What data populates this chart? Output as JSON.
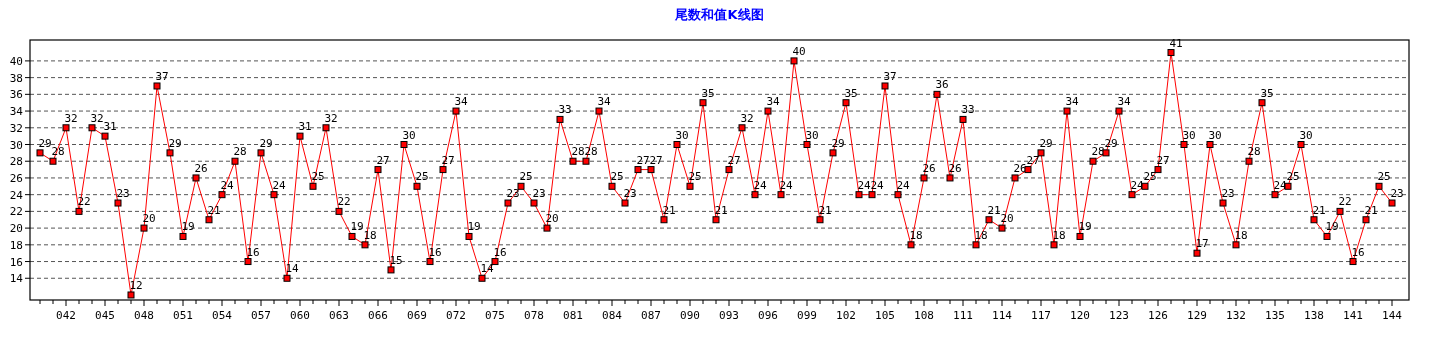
{
  "chart_data": {
    "type": "line",
    "title": "尾数和值K线图",
    "categories": [
      null,
      null,
      "042",
      null,
      null,
      "045",
      null,
      null,
      "048",
      null,
      null,
      "051",
      null,
      null,
      "054",
      null,
      null,
      "057",
      null,
      null,
      "060",
      null,
      null,
      "063",
      null,
      null,
      "066",
      null,
      null,
      "069",
      null,
      null,
      "072",
      null,
      null,
      "075",
      null,
      null,
      "078",
      null,
      null,
      "081",
      null,
      null,
      "084",
      null,
      null,
      "087",
      null,
      null,
      "090",
      null,
      null,
      "093",
      null,
      null,
      "096",
      null,
      null,
      "099",
      null,
      null,
      "102",
      null,
      null,
      "105",
      null,
      null,
      "108",
      null,
      null,
      "111",
      null,
      null,
      "114",
      null,
      null,
      "117",
      null,
      null,
      "120",
      null,
      null,
      "123",
      null,
      null,
      "126",
      null,
      null,
      "129",
      null,
      null,
      "132",
      null,
      null,
      "135",
      null,
      null,
      "138",
      null,
      null,
      "141",
      null,
      null,
      "144"
    ],
    "series": [
      {
        "color": "#ff0000",
        "values": [
          29,
          28,
          32,
          22,
          32,
          31,
          23,
          12,
          20,
          37,
          29,
          19,
          26,
          21,
          24,
          28,
          16,
          29,
          24,
          14,
          31,
          25,
          32,
          22,
          19,
          18,
          27,
          15,
          30,
          25,
          16,
          27,
          34,
          19,
          14,
          16,
          23,
          25,
          23,
          20,
          33,
          28,
          28,
          34,
          25,
          23,
          27,
          27,
          21,
          30,
          25,
          35,
          21,
          27,
          32,
          24,
          34,
          24,
          40,
          30,
          21,
          29,
          35,
          24,
          24,
          37,
          24,
          18,
          26,
          36,
          26,
          33,
          18,
          21,
          20,
          26,
          27,
          29,
          18,
          34,
          19,
          28,
          29,
          34,
          24,
          25,
          27,
          41,
          30,
          17,
          30,
          23,
          18,
          28,
          35,
          24,
          25,
          30,
          21,
          19,
          22,
          16,
          21,
          25,
          23
        ]
      }
    ],
    "ylim": [
      11.4,
      42.5
    ],
    "yticks": [
      14,
      16,
      18,
      20,
      22,
      24,
      26,
      28,
      30,
      32,
      34,
      36,
      38,
      40
    ],
    "grid": "y",
    "marker": "square",
    "data_labels": true
  }
}
